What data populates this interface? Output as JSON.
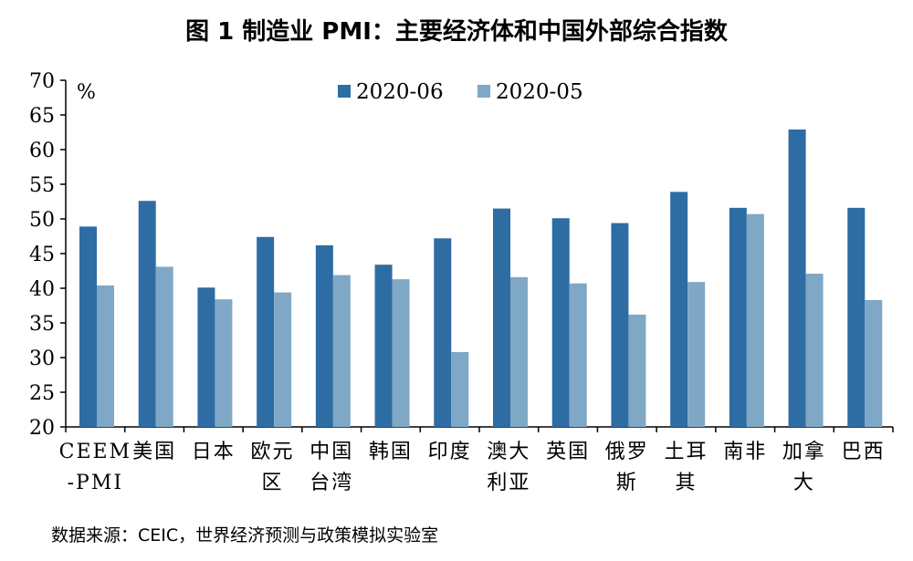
{
  "title": "图 1 制造业 PMI：主要经济体和中国外部综合指数",
  "source": "数据来源：CEIC，世界经济预测与政策模拟实验室",
  "chart_data": {
    "type": "bar",
    "categories": [
      [
        "CEEM",
        "-PMI"
      ],
      [
        "美国"
      ],
      [
        "日本"
      ],
      [
        "欧元",
        "区"
      ],
      [
        "中国",
        "台湾"
      ],
      [
        "韩国"
      ],
      [
        "印度"
      ],
      [
        "澳大",
        "利亚"
      ],
      [
        "英国"
      ],
      [
        "俄罗",
        "斯"
      ],
      [
        "土耳",
        "其"
      ],
      [
        "南非"
      ],
      [
        "加拿",
        "大"
      ],
      [
        "巴西"
      ]
    ],
    "series": [
      {
        "name": "2020-06",
        "color": "#2E6CA4",
        "values": [
          48.9,
          52.6,
          40.1,
          47.4,
          46.2,
          43.4,
          47.2,
          51.5,
          50.1,
          49.4,
          53.9,
          51.6,
          62.9,
          51.6
        ]
      },
      {
        "name": "2020-05",
        "color": "#7FA8C6",
        "values": [
          40.4,
          43.1,
          38.4,
          39.4,
          41.9,
          41.3,
          30.8,
          41.6,
          40.7,
          36.2,
          40.9,
          50.7,
          42.1,
          38.3
        ]
      }
    ],
    "unit": "%",
    "ylim": [
      20,
      70
    ],
    "yticks": [
      20,
      25,
      30,
      35,
      40,
      45,
      50,
      55,
      60,
      65,
      70
    ],
    "grid": false,
    "legend": "top-center"
  }
}
